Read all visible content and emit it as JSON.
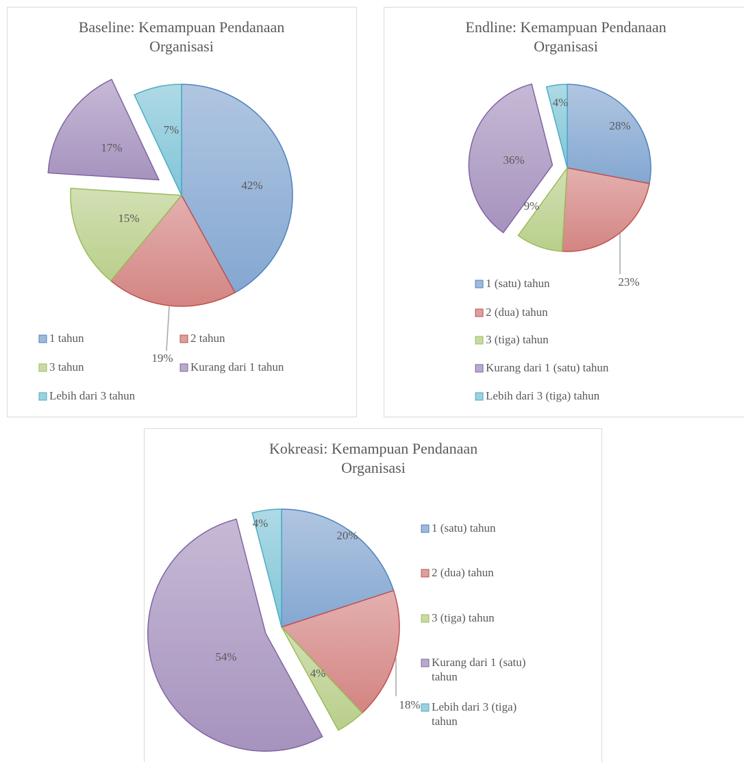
{
  "chart_data": [
    {
      "type": "pie",
      "title": "Baseline: Kemampuan Pendanaan Organisasi",
      "categories": [
        "1 tahun",
        "2 tahun",
        "3 tahun",
        "Kurang dari 1 tahun",
        "Lebih dari 3 tahun"
      ],
      "values": [
        42,
        19,
        15,
        17,
        7
      ],
      "value_labels": [
        "42%",
        "19%",
        "15%",
        "17%",
        "7%"
      ],
      "colors": [
        "#4f81bd",
        "#c0504d",
        "#9bbb59",
        "#8064a2",
        "#4bacc6"
      ],
      "exploded": [
        false,
        false,
        false,
        true,
        false
      ],
      "legend": "bottom"
    },
    {
      "type": "pie",
      "title": "Endline: Kemampuan Pendanaan Organisasi",
      "categories": [
        "1 (satu) tahun",
        "2 (dua) tahun",
        "3 (tiga) tahun",
        "Kurang dari 1 (satu) tahun",
        "Lebih dari 3 (tiga) tahun"
      ],
      "values": [
        28,
        23,
        9,
        36,
        4
      ],
      "value_labels": [
        "28%",
        "23%",
        "9%",
        "36%",
        "4%"
      ],
      "colors": [
        "#4f81bd",
        "#c0504d",
        "#9bbb59",
        "#8064a2",
        "#4bacc6"
      ],
      "exploded": [
        false,
        false,
        false,
        true,
        false
      ],
      "legend": "bottom"
    },
    {
      "type": "pie",
      "title": "Kokreasi: Kemampuan Pendanaan Organisasi",
      "categories": [
        "1 (satu) tahun",
        "2 (dua) tahun",
        "3 (tiga) tahun",
        "Kurang dari 1 (satu) tahun",
        "Lebih dari 3 (tiga) tahun"
      ],
      "values": [
        20,
        18,
        4,
        54,
        4
      ],
      "value_labels": [
        "20%",
        "18%",
        "4%",
        "54%",
        "4%"
      ],
      "colors": [
        "#4f81bd",
        "#c0504d",
        "#9bbb59",
        "#8064a2",
        "#4bacc6"
      ],
      "exploded": [
        false,
        false,
        false,
        true,
        false
      ],
      "legend": "right"
    }
  ]
}
